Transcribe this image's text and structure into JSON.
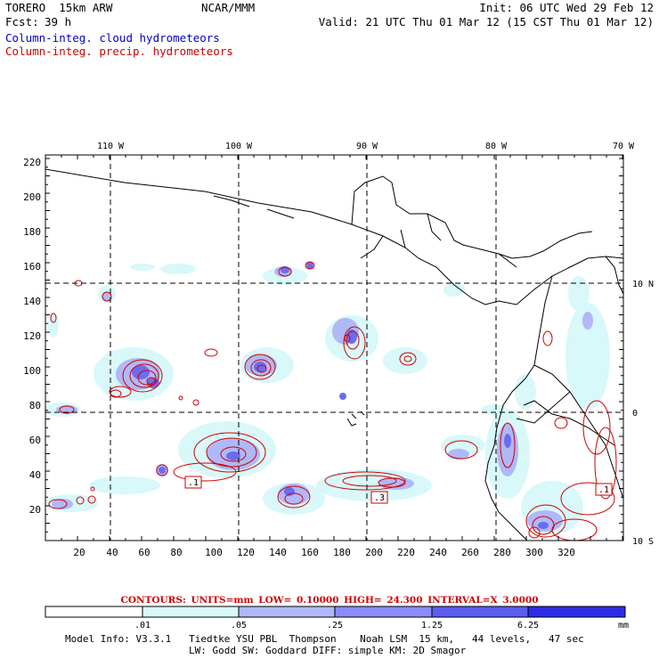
{
  "header": {
    "model": "TORERO  15km ARW",
    "org": "NCAR/MMM",
    "init": "Init: 06 UTC Wed 29 Feb 12",
    "fcst_label": "Fcst:",
    "fcst_hours": "39 h",
    "valid": "Valid: 21 UTC Thu 01 Mar 12 (15 CST Thu 01 Mar 12)",
    "cloud_title": "Column-integ. cloud hydrometeors",
    "precip_title": "Column-integ. precip. hydrometeors"
  },
  "axes": {
    "top_lon_labels": [
      "110 W",
      "100 W",
      "90 W",
      "80 W",
      "70 W"
    ],
    "right_lat_labels": [
      "10 N",
      "0",
      "10 S"
    ],
    "x_ticks": [
      "20",
      "40",
      "60",
      "80",
      "100",
      "120",
      "140",
      "160",
      "180",
      "200",
      "220",
      "240",
      "260",
      "280",
      "300",
      "320"
    ],
    "y_ticks": [
      "20",
      "40",
      "60",
      "80",
      "100",
      "120",
      "140",
      "160",
      "180",
      "200",
      "220"
    ]
  },
  "contour_info": "CONTOURS:  UNITS=mm  LOW= 0.10000     HIGH=  24.300     INTERVAL=X  3.0000",
  "contour_box_labels": [
    ".1",
    ".3",
    ".1"
  ],
  "colorbar": {
    "ticks": [
      ".01",
      ".05",
      ".25",
      "1.25",
      "6.25"
    ],
    "unit": "mm",
    "colors": [
      "#ffffff",
      "#d8f8fa",
      "#b0b8f8",
      "#8c8cf8",
      "#5c5cf0",
      "#2c2ce8"
    ]
  },
  "footer": {
    "line1": "Model Info: V3.3.1   Tiedtke YSU PBL  Thompson    Noah LSM  15 km,   44 levels,   47 sec",
    "line2": "LW: Godd SW: Goddard DIFF: simple KM: 2D Smagor"
  },
  "colors": {
    "cloud": "#0000d0",
    "precip": "#d00000",
    "contour": "#d00000",
    "grid": "#000000"
  }
}
